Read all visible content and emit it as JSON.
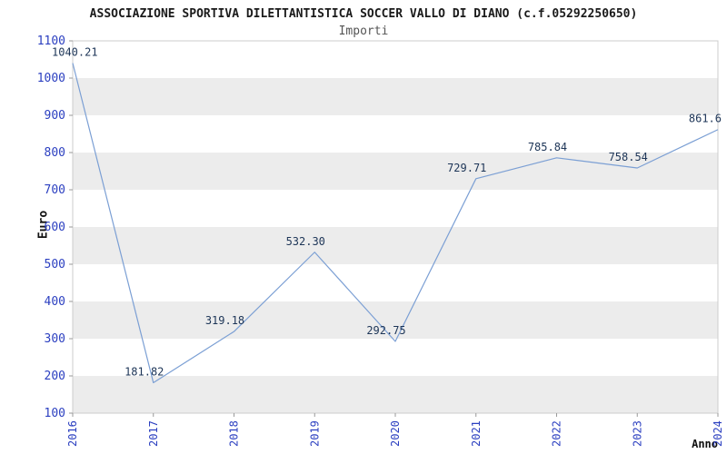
{
  "header": {
    "title": "ASSOCIAZIONE SPORTIVA DILETTANTISTICA SOCCER VALLO DI DIANO (c.f.05292250650)",
    "subtitle": "Importi"
  },
  "chart_data": {
    "type": "line",
    "title": "ASSOCIAZIONE SPORTIVA DILETTANTISTICA SOCCER VALLO DI DIANO (c.f.05292250650)",
    "subtitle": "Importi",
    "xlabel": "Anno",
    "ylabel": "Euro",
    "categories": [
      "2016",
      "2017",
      "2018",
      "2019",
      "2020",
      "2021",
      "2022",
      "2023",
      "2024"
    ],
    "values": [
      1040.21,
      181.82,
      319.18,
      532.3,
      292.75,
      729.71,
      785.84,
      758.54,
      861.6
    ],
    "point_labels": [
      "1040.21",
      "181.82",
      "319.18",
      "532.30",
      "292.75",
      "729.71",
      "785.84",
      "758.54",
      "861.6"
    ],
    "ylim": [
      100,
      1100
    ],
    "ytick_step": 100,
    "yticks": [
      "100",
      "200",
      "300",
      "400",
      "500",
      "600",
      "700",
      "800",
      "900",
      "1000",
      "1100"
    ],
    "grid": "banded",
    "legend": "none",
    "colors": {
      "line": "#7b9fd4",
      "point_label": "#1d3557",
      "axis_text": "#2b3fc0",
      "band": "#ececec",
      "border": "#cccccc",
      "tick": "#999999"
    }
  }
}
